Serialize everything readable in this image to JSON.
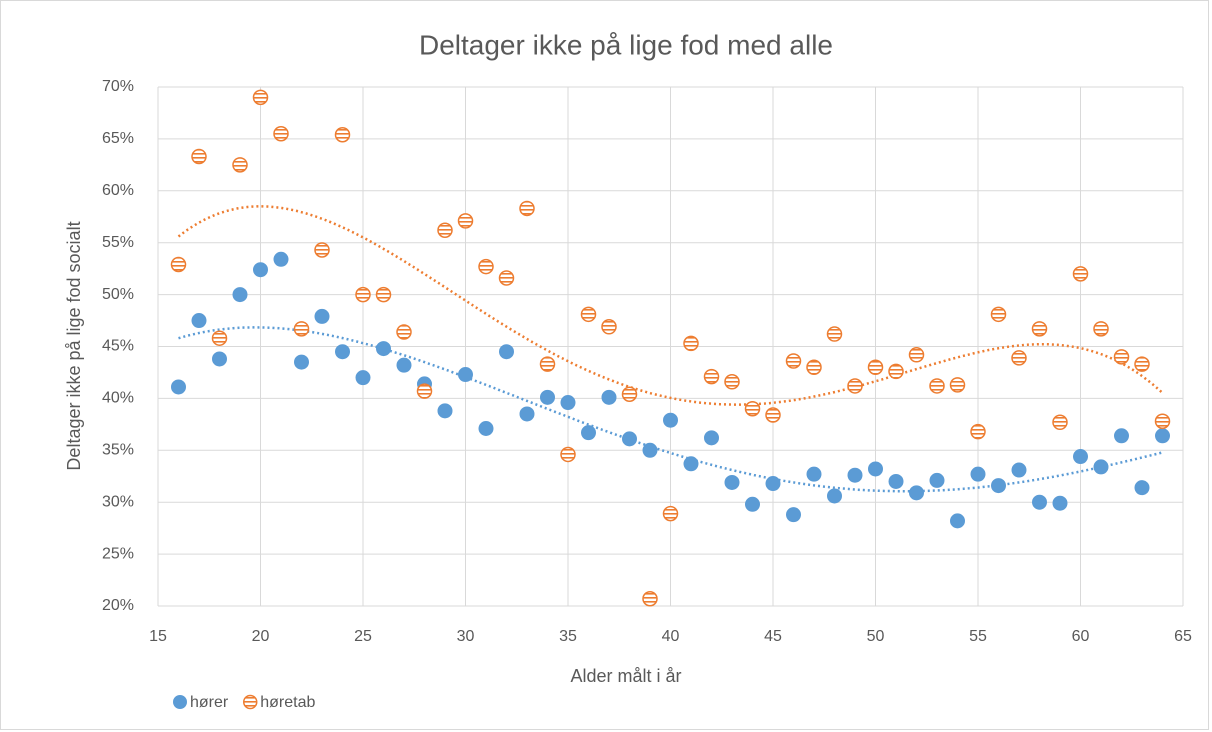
{
  "chart_data": {
    "type": "scatter",
    "title": "Deltager ikke på lige fod med alle",
    "x_label": "Alder målt i år",
    "y_label": "Deltager ikke på lige fod socialt",
    "xlim": [
      15,
      65
    ],
    "xticks": [
      15,
      20,
      25,
      30,
      35,
      40,
      45,
      50,
      55,
      60,
      65
    ],
    "ylim": [
      20,
      70
    ],
    "yticks": [
      {
        "value": 20,
        "label": "20%"
      },
      {
        "value": 25,
        "label": "25%"
      },
      {
        "value": 30,
        "label": "30%"
      },
      {
        "value": 35,
        "label": "35%"
      },
      {
        "value": 40,
        "label": "40%"
      },
      {
        "value": 45,
        "label": "45%"
      },
      {
        "value": 50,
        "label": "50%"
      },
      {
        "value": 55,
        "label": "55%"
      },
      {
        "value": 60,
        "label": "60%"
      },
      {
        "value": 65,
        "label": "65%"
      },
      {
        "value": 70,
        "label": "70%"
      }
    ],
    "grid": true,
    "legend": "bottom-left",
    "trendline_order": 4,
    "x": [
      16,
      17,
      18,
      19,
      20,
      21,
      22,
      23,
      24,
      25,
      26,
      27,
      28,
      29,
      30,
      31,
      32,
      33,
      34,
      35,
      36,
      37,
      38,
      39,
      40,
      41,
      42,
      43,
      44,
      45,
      46,
      47,
      48,
      49,
      50,
      51,
      52,
      53,
      54,
      55,
      56,
      57,
      58,
      59,
      60,
      61,
      62,
      63,
      64
    ],
    "series": [
      {
        "name": "hører",
        "color": "#5b9bd5",
        "values": [
          41.1,
          47.5,
          43.8,
          50.0,
          52.4,
          53.4,
          43.5,
          47.9,
          44.5,
          42.0,
          44.8,
          43.2,
          41.4,
          38.8,
          42.3,
          37.1,
          44.5,
          38.5,
          40.1,
          39.6,
          36.7,
          40.1,
          36.1,
          35.0,
          37.9,
          33.7,
          36.2,
          31.9,
          29.8,
          31.8,
          28.8,
          32.7,
          30.6,
          32.6,
          33.2,
          32.0,
          30.9,
          32.1,
          28.2,
          32.7,
          31.6,
          33.1,
          30.0,
          29.9,
          34.4,
          33.4,
          36.4,
          31.4,
          36.4
        ]
      },
      {
        "name": "høretab",
        "color": "#ed7d31",
        "values": [
          52.9,
          63.3,
          45.8,
          62.5,
          69.0,
          65.5,
          46.7,
          54.3,
          65.4,
          50.0,
          50.0,
          46.4,
          40.7,
          56.2,
          57.1,
          52.7,
          51.6,
          58.3,
          43.3,
          34.6,
          48.1,
          46.9,
          40.4,
          20.7,
          28.9,
          45.3,
          42.1,
          41.6,
          39.0,
          38.4,
          43.6,
          43.0,
          46.2,
          41.2,
          43.0,
          42.6,
          44.2,
          41.2,
          41.3,
          36.8,
          48.1,
          43.9,
          46.7,
          37.7,
          52.0,
          46.7,
          44.0,
          43.3,
          37.8
        ]
      }
    ]
  }
}
